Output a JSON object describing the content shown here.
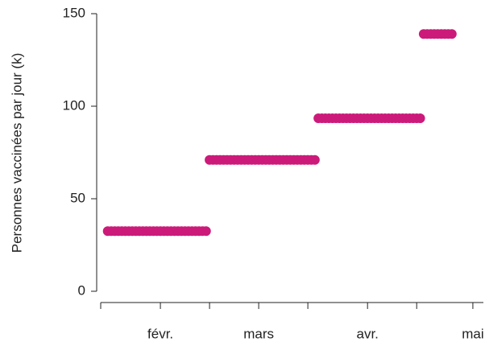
{
  "chart_data": {
    "type": "scatter",
    "y_label": "Personnes vaccinées par jour (k)",
    "color": "#cc1a7a",
    "x": [
      17,
      18,
      19,
      20,
      21,
      22,
      23,
      24,
      25,
      26,
      27,
      28,
      29,
      30,
      31,
      32,
      33,
      34,
      35,
      36,
      37,
      38,
      39,
      40,
      41,
      42,
      43,
      44,
      45,
      46,
      47,
      48,
      49,
      50,
      51,
      52,
      53,
      54,
      55,
      56,
      57,
      58,
      59,
      60,
      61,
      62,
      63,
      64,
      65,
      66,
      67,
      68,
      69,
      70,
      71,
      72,
      73,
      74,
      75,
      76,
      77,
      78,
      79,
      80,
      81,
      82,
      83,
      84,
      85,
      86,
      87,
      88,
      89,
      90,
      91,
      92,
      93,
      94,
      95,
      96,
      97,
      98,
      99,
      100,
      101,
      102,
      103,
      104,
      105,
      106,
      107,
      108,
      109,
      110,
      111,
      112,
      113,
      114,
      115
    ],
    "values": [
      32.5,
      32.5,
      32.5,
      32.5,
      32.5,
      32.5,
      32.5,
      32.5,
      32.5,
      32.5,
      32.5,
      32.5,
      32.5,
      32.5,
      32.5,
      32.5,
      32.5,
      32.5,
      32.5,
      32.5,
      32.5,
      32.5,
      32.5,
      32.5,
      32.5,
      32.5,
      32.5,
      32.5,
      32.5,
      71,
      71,
      71,
      71,
      71,
      71,
      71,
      71,
      71,
      71,
      71,
      71,
      71,
      71,
      71,
      71,
      71,
      71,
      71,
      71,
      71,
      71,
      71,
      71,
      71,
      71,
      71,
      71,
      71,
      71,
      71,
      93.5,
      93.5,
      93.5,
      93.5,
      93.5,
      93.5,
      93.5,
      93.5,
      93.5,
      93.5,
      93.5,
      93.5,
      93.5,
      93.5,
      93.5,
      93.5,
      93.5,
      93.5,
      93.5,
      93.5,
      93.5,
      93.5,
      93.5,
      93.5,
      93.5,
      93.5,
      93.5,
      93.5,
      93.5,
      93.5,
      139,
      139,
      139,
      139,
      139,
      139,
      139,
      139,
      139
    ],
    "xlim": [
      15,
      124
    ],
    "xticks": [
      {
        "value": 32,
        "label": "févr."
      },
      {
        "value": 60,
        "label": "mars"
      },
      {
        "value": 91,
        "label": "avr."
      },
      {
        "value": 121,
        "label": "mai"
      }
    ],
    "xminor": [
      15,
      46,
      74,
      105
    ],
    "ylim": [
      0,
      150
    ],
    "yticks": [
      0,
      50,
      100,
      150
    ]
  }
}
